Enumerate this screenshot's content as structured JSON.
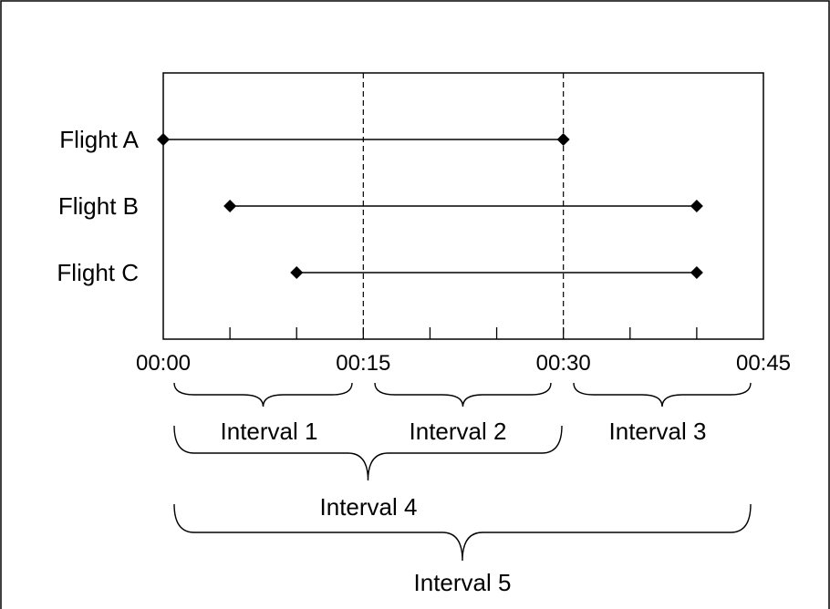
{
  "chart_data": {
    "type": "timeline",
    "flights": [
      {
        "label": "Flight A",
        "start": "00:00",
        "end": "00:30"
      },
      {
        "label": "Flight B",
        "start": "00:05",
        "end": "00:40"
      },
      {
        "label": "Flight C",
        "start": "00:10",
        "end": "00:40"
      }
    ],
    "x_range_minutes": [
      0,
      45
    ],
    "minor_tick_step_minutes": 5,
    "tick_labels": [
      "00:00",
      "00:15",
      "00:30",
      "00:45"
    ],
    "dashed_dividers_at": [
      "00:15",
      "00:30"
    ],
    "intervals": [
      {
        "label": "Interval 1",
        "from": "00:00",
        "to": "00:15"
      },
      {
        "label": "Interval 2",
        "from": "00:15",
        "to": "00:30"
      },
      {
        "label": "Interval 3",
        "from": "00:30",
        "to": "00:45"
      },
      {
        "label": "Interval 4",
        "from": "00:00",
        "to": "00:30"
      },
      {
        "label": "Interval 5",
        "from": "00:00",
        "to": "00:45"
      }
    ]
  }
}
